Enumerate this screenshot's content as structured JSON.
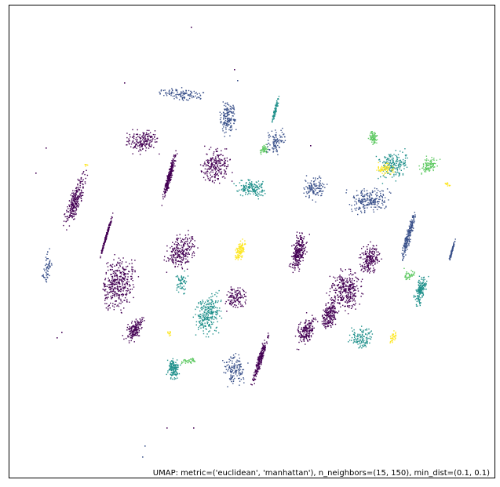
{
  "chart_data": {
    "type": "scatter",
    "title": "",
    "xlabel": "",
    "ylabel": "",
    "caption": "UMAP: metric=('euclidean', 'manhattan'), n_neighbors=(15, 150), min_dist=(0.1, 0.1)",
    "axes_visible": false,
    "grid": false,
    "colormap": "viridis",
    "colors": {
      "viridis": [
        "#440154",
        "#3b528b",
        "#21918c",
        "#5ec962",
        "#fde725"
      ],
      "frame": "#000000",
      "background": "#ffffff"
    }
  }
}
